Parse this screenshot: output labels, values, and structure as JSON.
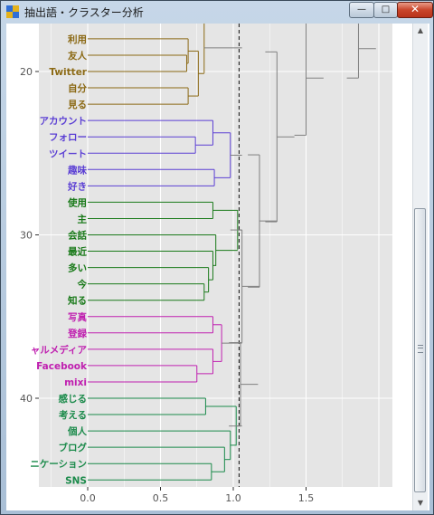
{
  "window": {
    "title": "抽出語・クラスター分析",
    "minimize_glyph": "—",
    "maximize_glyph": "□",
    "close_glyph": "✕"
  },
  "icons": {
    "app": "app-grid-icon",
    "scroll_up": "scroll-up-icon",
    "scroll_down": "scroll-down-icon",
    "scroll_grip": "scroll-grip-icon"
  },
  "colors": {
    "panel": "#e5e5e5",
    "grid": "#ffffff",
    "cluster_link": "#808080",
    "clusters": [
      "#8b6914",
      "#5b3fd4",
      "#1a7a1a",
      "#c020b0",
      "#1a8a4a"
    ]
  },
  "chart_data": {
    "type": "dendrogram",
    "orientation": "horizontal",
    "xlim": [
      -0.35,
      2.1
    ],
    "x_ticks": [
      "0.0",
      "0.5",
      "1.0",
      "1.5"
    ],
    "x_tick_values": [
      0.0,
      0.5,
      1.0,
      1.5
    ],
    "y_ticks": [
      "20",
      "30",
      "40"
    ],
    "y_tick_values": [
      20,
      30,
      40
    ],
    "y_range_visible": [
      16.8,
      45.3
    ],
    "cut_height": 1.04,
    "grid": true,
    "leaves": [
      {
        "label": "利用",
        "y": 18,
        "cluster": 0
      },
      {
        "label": "友人",
        "y": 19,
        "cluster": 0
      },
      {
        "label": "Twitter",
        "y": 20,
        "cluster": 0
      },
      {
        "label": "自分",
        "y": 21,
        "cluster": 0
      },
      {
        "label": "見る",
        "y": 22,
        "cluster": 0
      },
      {
        "label": "アカウント",
        "y": 23,
        "cluster": 1
      },
      {
        "label": "フォロー",
        "y": 24,
        "cluster": 1
      },
      {
        "label": "ツイート",
        "y": 25,
        "cluster": 1
      },
      {
        "label": "趣味",
        "y": 26,
        "cluster": 1
      },
      {
        "label": "好き",
        "y": 27,
        "cluster": 1
      },
      {
        "label": "使用",
        "y": 28,
        "cluster": 2
      },
      {
        "label": "主",
        "y": 29,
        "cluster": 2
      },
      {
        "label": "会話",
        "y": 30,
        "cluster": 2
      },
      {
        "label": "最近",
        "y": 31,
        "cluster": 2
      },
      {
        "label": "多い",
        "y": 32,
        "cluster": 2
      },
      {
        "label": "今",
        "y": 33,
        "cluster": 2
      },
      {
        "label": "知る",
        "y": 34,
        "cluster": 2
      },
      {
        "label": "写真",
        "y": 35,
        "cluster": 3
      },
      {
        "label": "登録",
        "y": 36,
        "cluster": 3
      },
      {
        "label": "ャルメディア",
        "y": 37,
        "cluster": 3
      },
      {
        "label": "Facebook",
        "y": 38,
        "cluster": 3
      },
      {
        "label": "mixi",
        "y": 39,
        "cluster": 3
      },
      {
        "label": "感じる",
        "y": 40,
        "cluster": 4
      },
      {
        "label": "考える",
        "y": 41,
        "cluster": 4
      },
      {
        "label": "個人",
        "y": 42,
        "cluster": 4
      },
      {
        "label": "ブログ",
        "y": 43,
        "cluster": 4
      },
      {
        "label": "ニケーション",
        "y": 44,
        "cluster": 4
      },
      {
        "label": "SNS",
        "y": 45,
        "cluster": 4
      }
    ],
    "merges": [
      {
        "cluster": 0,
        "h": 0.68,
        "y1": 19,
        "y2": 20
      },
      {
        "cluster": 0,
        "h": 0.69,
        "y1": 18,
        "y2": 19.5
      },
      {
        "cluster": 0,
        "h": 0.69,
        "y1": 21,
        "y2": 22
      },
      {
        "cluster": 0,
        "h": 0.76,
        "y1": 18.75,
        "y2": 21.5
      },
      {
        "cluster": 0,
        "h": 0.8,
        "y1": 17,
        "y2": 20.1
      },
      {
        "cluster": 1,
        "h": 0.74,
        "y1": 24,
        "y2": 25
      },
      {
        "cluster": 1,
        "h": 0.86,
        "y1": 23,
        "y2": 24.5
      },
      {
        "cluster": 1,
        "h": 0.87,
        "y1": 26,
        "y2": 27
      },
      {
        "cluster": 1,
        "h": 0.98,
        "y1": 23.75,
        "y2": 26.5
      },
      {
        "cluster": 2,
        "h": 0.8,
        "y1": 33,
        "y2": 34
      },
      {
        "cluster": 2,
        "h": 0.83,
        "y1": 32,
        "y2": 33.5
      },
      {
        "cluster": 2,
        "h": 0.86,
        "y1": 31,
        "y2": 32.75
      },
      {
        "cluster": 2,
        "h": 0.88,
        "y1": 30,
        "y2": 31.9
      },
      {
        "cluster": 2,
        "h": 0.86,
        "y1": 28,
        "y2": 29
      },
      {
        "cluster": 2,
        "h": 1.03,
        "y1": 28.5,
        "y2": 30.9
      },
      {
        "cluster": 3,
        "h": 0.75,
        "y1": 38,
        "y2": 39
      },
      {
        "cluster": 3,
        "h": 0.86,
        "y1": 37,
        "y2": 38.5
      },
      {
        "cluster": 3,
        "h": 0.86,
        "y1": 35,
        "y2": 36
      },
      {
        "cluster": 3,
        "h": 0.92,
        "y1": 35.5,
        "y2": 37.75
      },
      {
        "cluster": 4,
        "h": 0.81,
        "y1": 40,
        "y2": 41
      },
      {
        "cluster": 4,
        "h": 0.85,
        "y1": 44,
        "y2": 45
      },
      {
        "cluster": 4,
        "h": 0.94,
        "y1": 43,
        "y2": 44.5
      },
      {
        "cluster": 4,
        "h": 0.98,
        "y1": 42,
        "y2": 43.75
      },
      {
        "cluster": 4,
        "h": 1.02,
        "y1": 40.5,
        "y2": 42.9
      }
    ],
    "upper_merges": [
      {
        "h": 1.06,
        "y1": 29.7,
        "y2": 36.6
      },
      {
        "h": 1.05,
        "y1": 36.6,
        "y2": 41.7
      },
      {
        "h": 1.18,
        "y1": 25.1,
        "y2": 33.2
      },
      {
        "h": 1.3,
        "y1": 18.8,
        "y2": 29.2
      },
      {
        "h": 1.5,
        "y1": 16.9,
        "y2": 23.9
      },
      {
        "h": 1.86,
        "y1": 16.8,
        "y2": 20.4
      }
    ]
  }
}
